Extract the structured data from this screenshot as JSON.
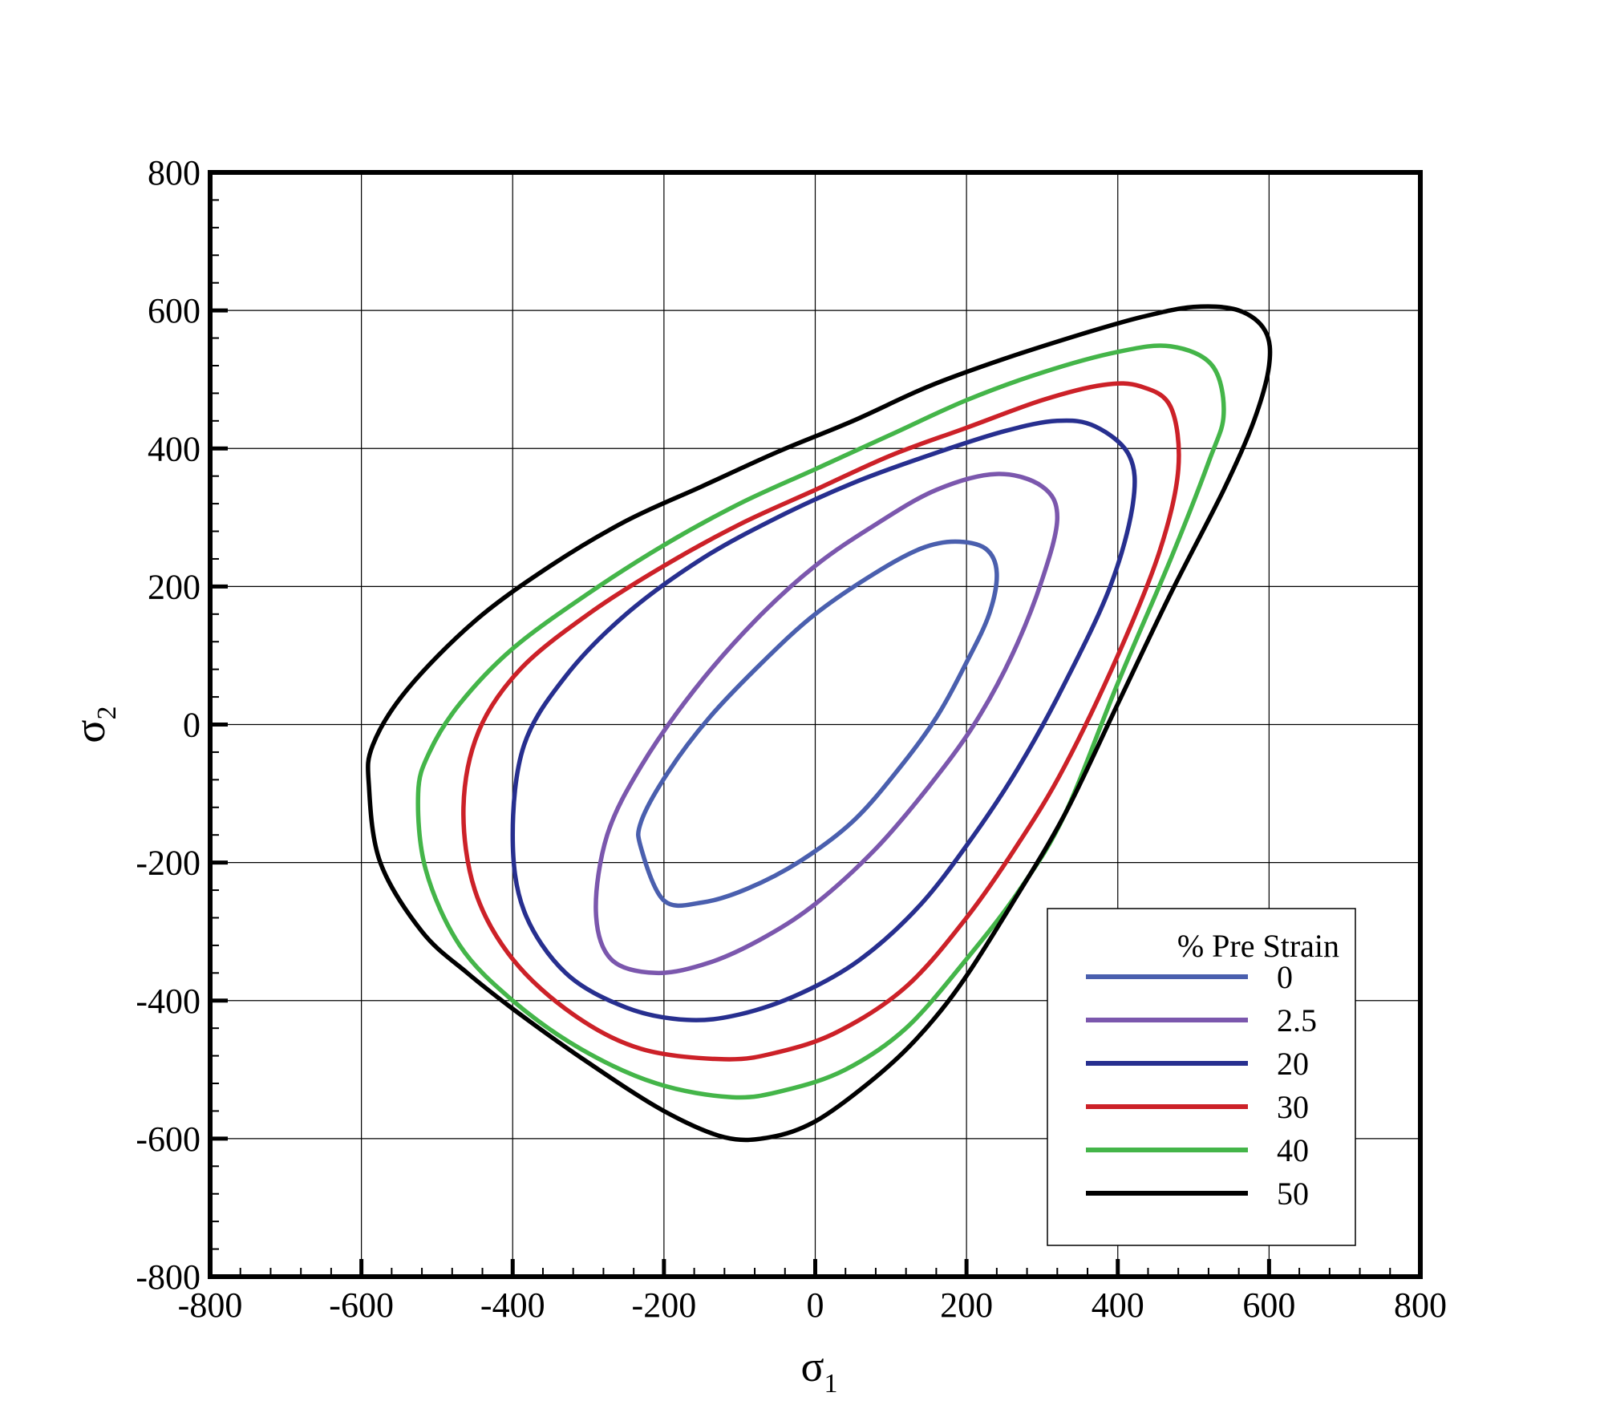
{
  "chart_data": {
    "type": "line",
    "title": "",
    "xlabel": {
      "symbol": "σ",
      "sub": "1"
    },
    "ylabel": {
      "symbol": "σ",
      "sub": "2"
    },
    "xlim": [
      -800,
      800
    ],
    "ylim": [
      -800,
      800
    ],
    "xticks": [
      -800,
      -600,
      -400,
      -200,
      0,
      200,
      400,
      600,
      800
    ],
    "yticks": [
      -800,
      -600,
      -400,
      -200,
      0,
      200,
      400,
      600,
      800
    ],
    "xtick_labels": [
      "-800",
      "-600",
      "-400",
      "-200",
      "0",
      "200",
      "400",
      "600",
      "800"
    ],
    "ytick_labels": [
      "-800",
      "-600",
      "-400",
      "-200",
      "0",
      "200",
      "400",
      "600",
      "800"
    ],
    "grid": true,
    "legend": {
      "title": "% Pre Strain",
      "position": "bottom-right"
    },
    "series": [
      {
        "name": "0",
        "color": "#4a5fae",
        "points": [
          [
            -230,
            -180
          ],
          [
            -200,
            -255
          ],
          [
            -150,
            -258
          ],
          [
            -90,
            -238
          ],
          [
            -20,
            -198
          ],
          [
            50,
            -140
          ],
          [
            110,
            -65
          ],
          [
            160,
            10
          ],
          [
            200,
            90
          ],
          [
            230,
            160
          ],
          [
            240,
            220
          ],
          [
            225,
            255
          ],
          [
            185,
            265
          ],
          [
            140,
            255
          ],
          [
            80,
            220
          ],
          [
            0,
            160
          ],
          [
            -70,
            90
          ],
          [
            -140,
            10
          ],
          [
            -195,
            -70
          ],
          [
            -230,
            -140
          ]
        ]
      },
      {
        "name": "2.5",
        "color": "#7b57ad",
        "points": [
          [
            -290,
            -270
          ],
          [
            -270,
            -340
          ],
          [
            -210,
            -360
          ],
          [
            -140,
            -345
          ],
          [
            -70,
            -310
          ],
          [
            0,
            -260
          ],
          [
            80,
            -180
          ],
          [
            150,
            -90
          ],
          [
            210,
            0
          ],
          [
            260,
            100
          ],
          [
            300,
            210
          ],
          [
            320,
            300
          ],
          [
            300,
            345
          ],
          [
            240,
            363
          ],
          [
            160,
            340
          ],
          [
            80,
            290
          ],
          [
            0,
            230
          ],
          [
            -80,
            150
          ],
          [
            -160,
            50
          ],
          [
            -230,
            -60
          ],
          [
            -275,
            -160
          ]
        ]
      },
      {
        "name": "20",
        "color": "#272f8f",
        "points": [
          [
            -400,
            -160
          ],
          [
            -385,
            -270
          ],
          [
            -330,
            -360
          ],
          [
            -250,
            -410
          ],
          [
            -170,
            -428
          ],
          [
            -100,
            -420
          ],
          [
            -20,
            -390
          ],
          [
            60,
            -340
          ],
          [
            140,
            -260
          ],
          [
            210,
            -160
          ],
          [
            270,
            -60
          ],
          [
            330,
            60
          ],
          [
            390,
            200
          ],
          [
            420,
            320
          ],
          [
            415,
            390
          ],
          [
            370,
            432
          ],
          [
            320,
            440
          ],
          [
            250,
            425
          ],
          [
            150,
            390
          ],
          [
            50,
            350
          ],
          [
            -50,
            300
          ],
          [
            -150,
            240
          ],
          [
            -250,
            160
          ],
          [
            -330,
            70
          ],
          [
            -385,
            -30
          ]
        ]
      },
      {
        "name": "30",
        "color": "#cc2128",
        "points": [
          [
            -465,
            -120
          ],
          [
            -450,
            -240
          ],
          [
            -400,
            -340
          ],
          [
            -320,
            -420
          ],
          [
            -230,
            -470
          ],
          [
            -120,
            -485
          ],
          [
            -50,
            -475
          ],
          [
            30,
            -445
          ],
          [
            120,
            -380
          ],
          [
            200,
            -280
          ],
          [
            270,
            -170
          ],
          [
            330,
            -60
          ],
          [
            400,
            100
          ],
          [
            455,
            250
          ],
          [
            480,
            370
          ],
          [
            470,
            460
          ],
          [
            430,
            490
          ],
          [
            380,
            492
          ],
          [
            300,
            470
          ],
          [
            200,
            430
          ],
          [
            100,
            390
          ],
          [
            0,
            340
          ],
          [
            -100,
            290
          ],
          [
            -200,
            230
          ],
          [
            -300,
            160
          ],
          [
            -390,
            80
          ],
          [
            -445,
            -10
          ]
        ]
      },
      {
        "name": "40",
        "color": "#44b549",
        "points": [
          [
            -525,
            -100
          ],
          [
            -515,
            -210
          ],
          [
            -470,
            -320
          ],
          [
            -400,
            -400
          ],
          [
            -310,
            -470
          ],
          [
            -210,
            -520
          ],
          [
            -110,
            -540
          ],
          [
            -40,
            -530
          ],
          [
            40,
            -500
          ],
          [
            120,
            -440
          ],
          [
            200,
            -340
          ],
          [
            270,
            -240
          ],
          [
            330,
            -130
          ],
          [
            400,
            60
          ],
          [
            470,
            240
          ],
          [
            520,
            380
          ],
          [
            540,
            450
          ],
          [
            525,
            520
          ],
          [
            470,
            548
          ],
          [
            400,
            540
          ],
          [
            300,
            510
          ],
          [
            200,
            470
          ],
          [
            100,
            420
          ],
          [
            0,
            370
          ],
          [
            -100,
            320
          ],
          [
            -200,
            260
          ],
          [
            -300,
            190
          ],
          [
            -400,
            110
          ],
          [
            -470,
            30
          ],
          [
            -510,
            -40
          ]
        ]
      },
      {
        "name": "50",
        "color": "#000000",
        "points": [
          [
            -590,
            -90
          ],
          [
            -575,
            -200
          ],
          [
            -520,
            -300
          ],
          [
            -460,
            -360
          ],
          [
            -390,
            -420
          ],
          [
            -300,
            -490
          ],
          [
            -200,
            -560
          ],
          [
            -120,
            -598
          ],
          [
            -60,
            -598
          ],
          [
            0,
            -575
          ],
          [
            70,
            -520
          ],
          [
            130,
            -460
          ],
          [
            190,
            -380
          ],
          [
            260,
            -260
          ],
          [
            330,
            -130
          ],
          [
            400,
            30
          ],
          [
            470,
            190
          ],
          [
            540,
            340
          ],
          [
            580,
            440
          ],
          [
            600,
            520
          ],
          [
            595,
            570
          ],
          [
            560,
            600
          ],
          [
            500,
            605
          ],
          [
            430,
            590
          ],
          [
            350,
            565
          ],
          [
            250,
            530
          ],
          [
            150,
            490
          ],
          [
            50,
            440
          ],
          [
            -50,
            395
          ],
          [
            -150,
            345
          ],
          [
            -250,
            295
          ],
          [
            -350,
            230
          ],
          [
            -450,
            150
          ],
          [
            -540,
            50
          ],
          [
            -585,
            -30
          ]
        ]
      }
    ]
  }
}
